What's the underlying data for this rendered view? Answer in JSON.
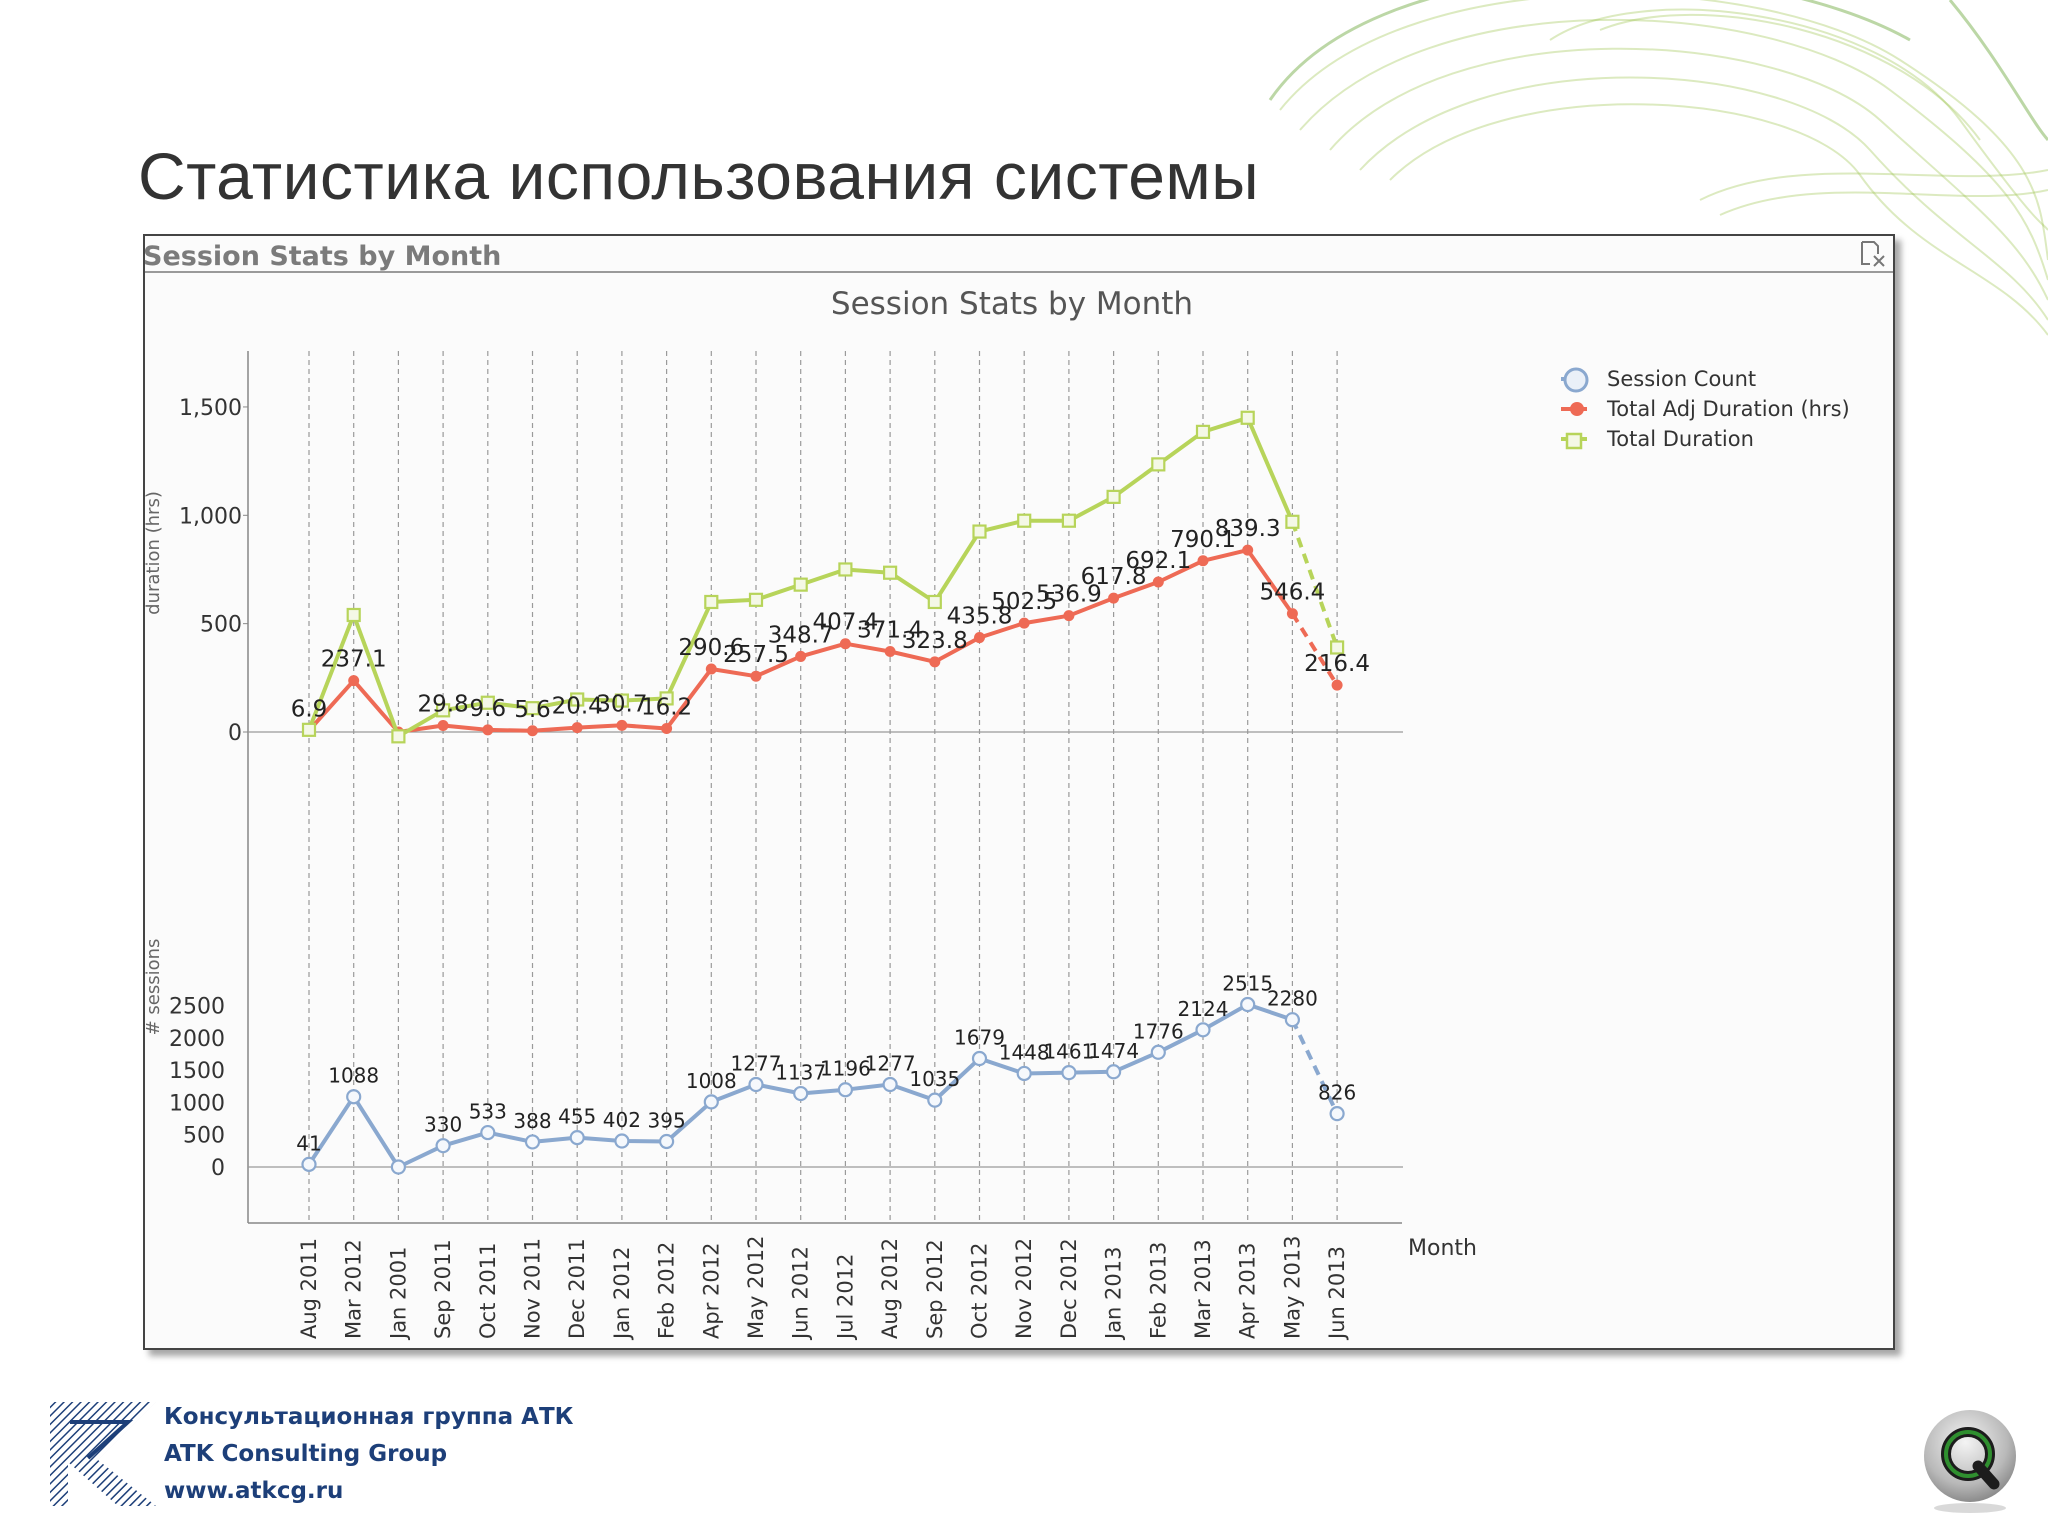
{
  "slide": {
    "title": "Статистика использования системы"
  },
  "panel": {
    "caption": "Session Stats by Month",
    "close_icon": "detach-close-icon"
  },
  "chart_data": {
    "type": "line",
    "title": "Session Stats by Month",
    "xlabel": "Month",
    "categories": [
      "Aug 2011",
      "Mar 2012",
      "Jan 2001",
      "Sep 2011",
      "Oct 2011",
      "Nov 2011",
      "Dec 2011",
      "Jan 2012",
      "Feb 2012",
      "Apr 2012",
      "May 2012",
      "Jun 2012",
      "Jul 2012",
      "Aug 2012",
      "Sep 2012",
      "Oct 2012",
      "Nov 2012",
      "Dec 2012",
      "Jan 2013",
      "Feb 2013",
      "Mar 2013",
      "Apr 2013",
      "May 2013",
      "Jun 2013"
    ],
    "legend_position": "top-right",
    "grid": "vertical dashed",
    "panels": [
      {
        "ylabel": "duration (hrs)",
        "ylim": [
          0,
          1500
        ],
        "yticks": [
          "0",
          "500",
          "1,000",
          "1,500"
        ],
        "ytick_values": [
          0,
          500,
          1000,
          1500
        ],
        "series": [
          {
            "name": "Total Adj Duration (hrs)",
            "color": "#ee6a55",
            "marker": "dot",
            "labels": [
              "6.9",
              "237.1",
              "",
              "29.8",
              "9.6",
              "5.6",
              "20.4",
              "30.7",
              "16.2",
              "290.6",
              "257.5",
              "348.7",
              "407.4",
              "371.4",
              "323.8",
              "435.8",
              "502.5",
              "536.9",
              "617.8",
              "692.1",
              "790.1",
              "839.3",
              "546.4",
              "216.4"
            ],
            "values": [
              6.9,
              237.1,
              0,
              29.8,
              9.6,
              5.6,
              20.4,
              30.7,
              16.2,
              290.6,
              257.5,
              348.7,
              407.4,
              371.4,
              323.8,
              435.8,
              502.5,
              536.9,
              617.8,
              692.1,
              790.1,
              839.3,
              546.4,
              216.4
            ]
          },
          {
            "name": "Total Duration",
            "color": "#b7d45a",
            "marker": "square",
            "labels": [],
            "values": [
              10,
              540,
              -20,
              100,
              135,
              110,
              150,
              145,
              155,
              600,
              610,
              680,
              750,
              735,
              600,
              925,
              975,
              975,
              1085,
              1235,
              1385,
              1450,
              970,
              390
            ]
          }
        ]
      },
      {
        "ylabel": "# sessions",
        "ylim": [
          0,
          2500
        ],
        "yticks": [
          "0",
          "500",
          "1000",
          "1500",
          "2000",
          "2500"
        ],
        "ytick_values": [
          0,
          500,
          1000,
          1500,
          2000,
          2500
        ],
        "series": [
          {
            "name": "Session Count",
            "color": "#8aa8cf",
            "marker": "circle",
            "labels": [
              "41",
              "1088",
              "",
              "330",
              "533",
              "388",
              "455",
              "402",
              "395",
              "1008",
              "1277",
              "1137",
              "1196",
              "1277",
              "1035",
              "1679",
              "1448",
              "1461",
              "1474",
              "1776",
              "2124",
              "2515",
              "2280",
              "826"
            ],
            "values": [
              41,
              1088,
              0,
              330,
              533,
              388,
              455,
              402,
              395,
              1008,
              1277,
              1137,
              1196,
              1277,
              1035,
              1679,
              1448,
              1461,
              1474,
              1776,
              2124,
              2515,
              2280,
              826
            ]
          }
        ]
      }
    ]
  },
  "footer": {
    "company_ru": "Консультационная группа АТК",
    "company_en": "ATK Consulting Group",
    "website": "www.atkcg.ru",
    "left_logo_icon": "atk-logo-icon",
    "right_logo_icon": "qlikview-logo-icon"
  }
}
